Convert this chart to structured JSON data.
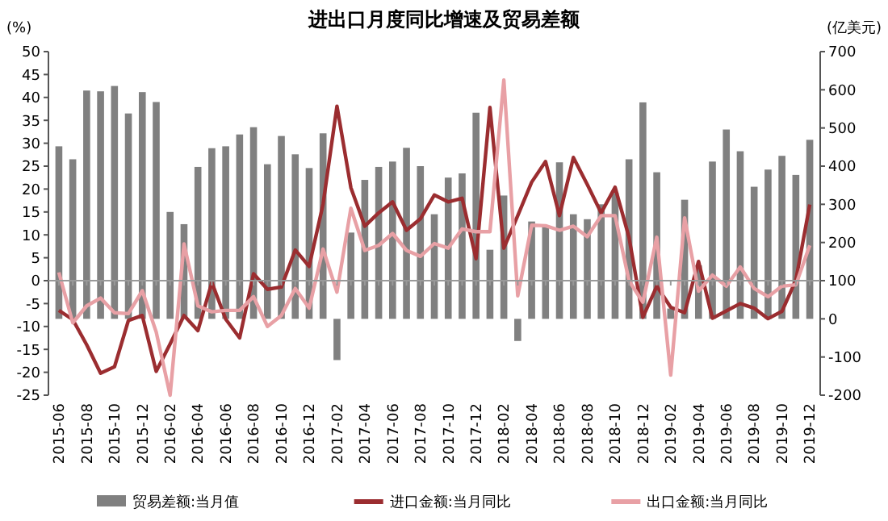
{
  "chart_data": {
    "type": "bar",
    "title": "进出口月度同比增速及贸易差额",
    "ylabel": "(%)",
    "y2label": "(亿美元)",
    "categories": [
      "2015-06",
      null,
      "2015-08",
      null,
      "2015-10",
      null,
      "2015-12",
      null,
      "2016-02",
      null,
      "2016-04",
      null,
      "2016-06",
      null,
      "2016-08",
      null,
      "2016-10",
      null,
      "2016-12",
      null,
      "2017-02",
      null,
      "2017-04",
      null,
      "2017-06",
      null,
      "2017-08",
      null,
      "2017-10",
      null,
      "2017-12",
      null,
      "2018-02",
      null,
      "2018-04",
      null,
      "2018-06",
      null,
      "2018-08",
      null,
      "2018-10",
      null,
      "2018-12",
      null,
      "2019-02",
      null,
      "2019-04",
      null,
      "2019-06",
      null,
      "2019-08",
      null,
      "2019-10",
      null,
      "2019-12"
    ],
    "series": [
      {
        "name": "贸易差额:当月值",
        "axis": "y2",
        "color": "#808080",
        "values": [
          452,
          418,
          598,
          596,
          610,
          538,
          594,
          568,
          280,
          248,
          398,
          447,
          452,
          483,
          502,
          405,
          479,
          431,
          395,
          486,
          -108,
          226,
          364,
          398,
          412,
          448,
          400,
          274,
          370,
          381,
          540,
          181,
          323,
          -58,
          255,
          245,
          410,
          274,
          261,
          300,
          330,
          418,
          567,
          384,
          27,
          312,
          140,
          412,
          496,
          439,
          346,
          391,
          427,
          377,
          469
        ]
      },
      {
        "name": "进口金额:当月同比",
        "type": "line",
        "color": "#9b2d30",
        "values": [
          -6.5,
          -8.5,
          -14,
          -20.2,
          -18.8,
          -8.7,
          -7.6,
          -19.8,
          -13.8,
          -7.6,
          -10.9,
          -0.4,
          -8.4,
          -12.5,
          1.5,
          -1.9,
          -1.4,
          6.7,
          3.1,
          16.7,
          38.1,
          20.3,
          11.9,
          14.8,
          17.2,
          11,
          13.5,
          18.7,
          17.2,
          18,
          4.8,
          37.8,
          7.1,
          14.2,
          21.5,
          26,
          14.2,
          26.9,
          21,
          14.8,
          20.4,
          9.5,
          -8,
          -1.2,
          -5.8,
          -7,
          4.2,
          -8.2,
          -6.6,
          -5,
          -6,
          -8.3,
          -6.7,
          0.1,
          16.6
        ]
      },
      {
        "name": "出口金额:当月同比",
        "type": "line",
        "color": "#e8a0a5",
        "values": [
          1.8,
          -9.2,
          -5.5,
          -3.8,
          -7,
          -7.2,
          -2.2,
          -11.2,
          -25,
          8,
          -5.5,
          -6.8,
          -6.5,
          -6.5,
          -3.5,
          -10,
          -7.6,
          -1.7,
          -6,
          6.9,
          -2.5,
          15.8,
          6.6,
          7.7,
          10.3,
          6.6,
          5.3,
          8.1,
          7.1,
          11.3,
          10.7,
          10.7,
          43.8,
          -3.3,
          12.1,
          12,
          11,
          11.9,
          9.6,
          14.2,
          14.2,
          0,
          -4.7,
          9.5,
          -20.6,
          13.7,
          -2.3,
          1.2,
          -1.2,
          3,
          -1.7,
          -3.5,
          -1.2,
          -0.9,
          7.7
        ]
      }
    ],
    "ylim": [
      -25,
      50
    ],
    "yticks": [
      -25,
      -20,
      -15,
      -10,
      -5,
      0,
      5,
      10,
      15,
      20,
      25,
      30,
      35,
      40,
      45,
      50
    ],
    "y2lim": [
      -200,
      700
    ],
    "y2ticks": [
      -200,
      -100,
      0,
      100,
      200,
      300,
      400,
      500,
      600,
      700
    ],
    "legend": "bottom",
    "line_style": "solid",
    "marker": "none"
  }
}
